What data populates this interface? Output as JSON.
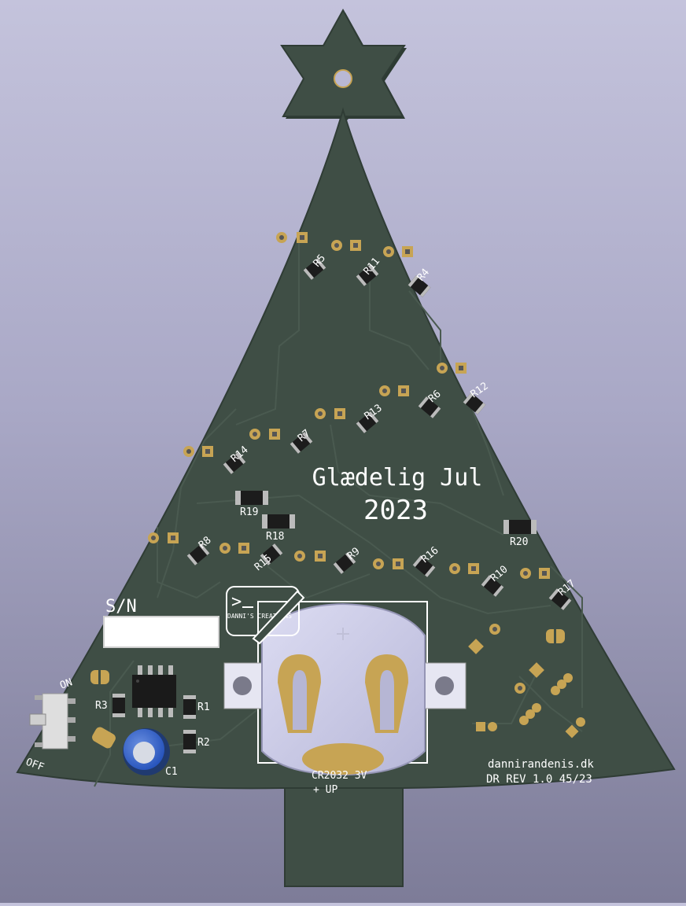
{
  "board": {
    "title_line1": "Glædelig Jul",
    "title_line2": "2023",
    "sn_label": "S/N",
    "switch_on": "ON",
    "switch_off": "OFF",
    "logo_text": "DANNI'S CREATIONS",
    "logo_glyph": ">",
    "battery_label": "CR2032 3V",
    "battery_polarity": "+ UP",
    "website": "dannirandenis.dk",
    "revision": "DR REV 1.0 45/23",
    "colors": {
      "pcb": "#3f4e45",
      "silk": "#ffffff",
      "pad": "#c7a454",
      "holder": "#c8c8e6"
    }
  },
  "components": {
    "R1": "R1",
    "R2": "R2",
    "R3": "R3",
    "C1": "C1",
    "R4": "R4",
    "R5": "R5",
    "R6": "R6",
    "R7": "R7",
    "R8": "R8",
    "R9": "R9",
    "R10": "R10",
    "R11": "R11",
    "R12": "R12",
    "R13": "R13",
    "R14": "R14",
    "R15": "R15",
    "R16": "R16",
    "R17": "R17",
    "R18": "R18",
    "R19": "R19",
    "R20": "R20"
  }
}
